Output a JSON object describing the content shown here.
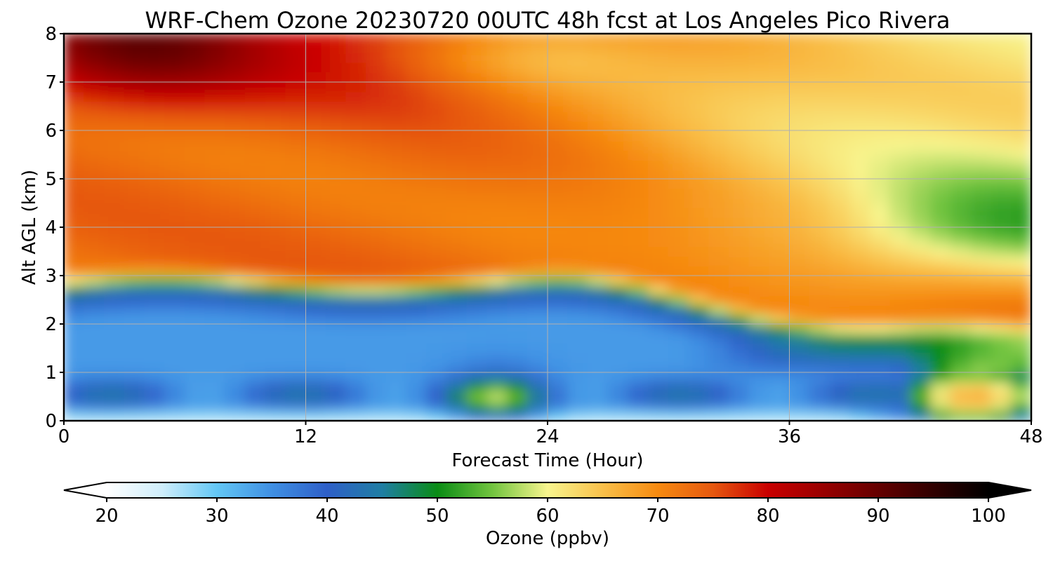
{
  "chart_data": {
    "type": "heatmap",
    "title": "WRF-Chem Ozone  20230720 00UTC 48h fcst at Los Angeles Pico Rivera",
    "xlabel": "Forecast Time (Hour)",
    "ylabel": "Alt AGL (km)",
    "xlim": [
      0,
      48
    ],
    "ylim": [
      0,
      8
    ],
    "x_ticks": [
      0,
      12,
      24,
      36,
      48
    ],
    "y_ticks": [
      0,
      1,
      2,
      3,
      4,
      5,
      6,
      7,
      8
    ],
    "grid": true,
    "colorbar": {
      "label": "Ozone  (ppbv)",
      "min": 20,
      "max": 100,
      "ticks": [
        20,
        30,
        40,
        50,
        60,
        70,
        80,
        90,
        100
      ],
      "extend": "both",
      "orientation": "horizontal",
      "colors": {
        "20": "#ffffff",
        "25": "#cfeefb",
        "30": "#63c7f5",
        "35": "#3f8fe3",
        "40": "#2e5fc8",
        "45": "#1f7ea3",
        "50": "#0a8c15",
        "55": "#72c43f",
        "60": "#f8f58e",
        "65": "#f9c04a",
        "70": "#f68a10",
        "75": "#e6580f",
        "80": "#c90000",
        "85": "#990000",
        "90": "#650000",
        "95": "#300000",
        "100": "#000000"
      }
    },
    "x": [
      0,
      2,
      4,
      6,
      8,
      10,
      12,
      14,
      16,
      18,
      20,
      22,
      24,
      26,
      28,
      30,
      32,
      34,
      36,
      38,
      40,
      42,
      44,
      46,
      48
    ],
    "y": [
      0,
      0.25,
      0.5,
      0.75,
      1,
      1.25,
      1.5,
      1.75,
      2,
      2.25,
      2.5,
      2.75,
      3,
      3.25,
      3.5,
      3.75,
      4,
      4.25,
      4.5,
      4.75,
      5,
      5.25,
      5.5,
      5.75,
      6,
      6.25,
      6.5,
      6.75,
      7,
      7.25,
      7.5,
      7.75,
      8
    ],
    "grid_description": "ozone (ppbv) sampled at x (forecast hour) by y (altitude km)"
  }
}
